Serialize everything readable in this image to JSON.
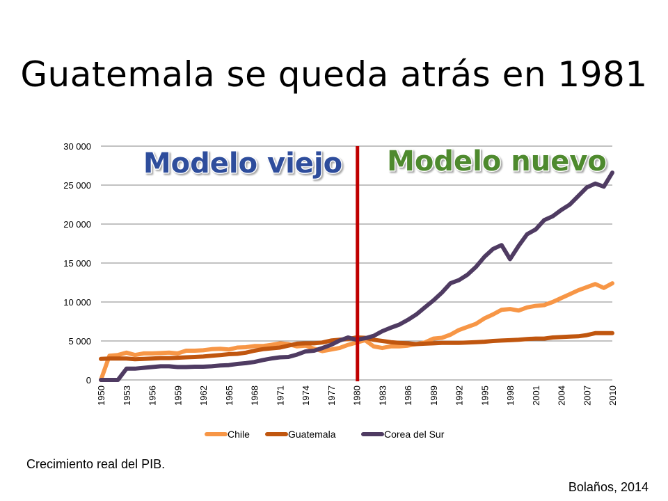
{
  "slide": {
    "title": "Guatemala se queda atrás en 1981",
    "caption": "Crecimiento real del PIB.",
    "source": "Bolaños, 2014"
  },
  "annotations": {
    "left_label": "Modelo viejo",
    "right_label": "Modelo nuevo",
    "left_color": "#2e4d9c",
    "right_color": "#4e8a2e",
    "divider_year": 1980.1,
    "divider_color": "#c00000"
  },
  "chart_data": {
    "type": "line",
    "title": "",
    "xlabel": "",
    "ylabel": "",
    "x_start": 1950,
    "x_end": 2010,
    "xtick_labels": [
      "1950",
      "1953",
      "1956",
      "1959",
      "1962",
      "1965",
      "1968",
      "1971",
      "1974",
      "1977",
      "1980",
      "1983",
      "1986",
      "1989",
      "1992",
      "1995",
      "1998",
      "2001",
      "2004",
      "2007",
      "2010"
    ],
    "ytick_labels": [
      "0",
      "5 000",
      "10 000",
      "15 000",
      "20 000",
      "25 000",
      "30 000"
    ],
    "ytick_values": [
      0,
      5000,
      10000,
      15000,
      20000,
      25000,
      30000
    ],
    "ylim": [
      0,
      30000
    ],
    "grid": "horizontal",
    "legend_position": "bottom",
    "series": [
      {
        "name": "Chile",
        "color": "#f79646",
        "values": [
          0,
          3100,
          3200,
          3500,
          3200,
          3400,
          3400,
          3450,
          3500,
          3400,
          3750,
          3750,
          3800,
          3950,
          4000,
          3900,
          4150,
          4200,
          4350,
          4350,
          4500,
          4700,
          4600,
          4300,
          4400,
          4000,
          3700,
          3900,
          4100,
          4500,
          4800,
          5100,
          4300,
          4100,
          4300,
          4300,
          4400,
          4600,
          4800,
          5300,
          5400,
          5800,
          6400,
          6800,
          7200,
          7900,
          8400,
          9000,
          9100,
          8900,
          9300,
          9500,
          9600,
          10000,
          10500,
          11000,
          11500,
          11900,
          12300,
          11800,
          12400
        ]
      },
      {
        "name": "Guatemala",
        "color": "#c0560f",
        "values": [
          2700,
          2750,
          2750,
          2750,
          2650,
          2700,
          2750,
          2800,
          2800,
          2850,
          2900,
          2950,
          3000,
          3100,
          3200,
          3300,
          3350,
          3500,
          3750,
          3950,
          4050,
          4150,
          4400,
          4650,
          4700,
          4700,
          4800,
          5050,
          5150,
          5250,
          5450,
          5400,
          5150,
          5000,
          4850,
          4750,
          4700,
          4600,
          4650,
          4700,
          4750,
          4750,
          4750,
          4800,
          4850,
          4900,
          5000,
          5050,
          5100,
          5150,
          5250,
          5300,
          5300,
          5450,
          5500,
          5550,
          5600,
          5750,
          6000,
          6000,
          6000
        ]
      },
      {
        "name": "Corea del Sur",
        "color": "#4f3b62",
        "values": [
          0,
          0,
          0,
          1450,
          1450,
          1550,
          1650,
          1750,
          1750,
          1650,
          1650,
          1700,
          1700,
          1750,
          1850,
          1900,
          2050,
          2150,
          2300,
          2550,
          2750,
          2900,
          2950,
          3250,
          3650,
          3750,
          4100,
          4500,
          5050,
          5450,
          5150,
          5350,
          5650,
          6250,
          6700,
          7100,
          7700,
          8400,
          9300,
          10200,
          11200,
          12400,
          12800,
          13500,
          14500,
          15800,
          16800,
          17300,
          15500,
          17200,
          18700,
          19300,
          20500,
          21000,
          21800,
          22500,
          23600,
          24700,
          25200,
          24800,
          26600
        ]
      }
    ]
  }
}
